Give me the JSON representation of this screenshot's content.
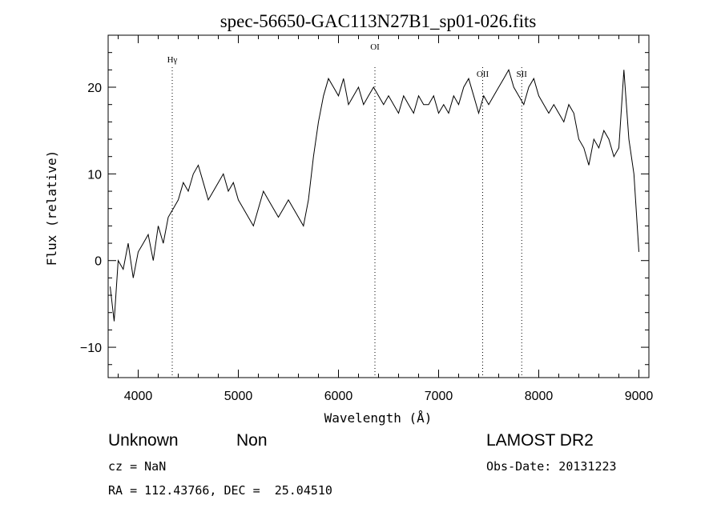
{
  "chart_data": {
    "type": "line",
    "title": "spec-56650-GAC113N27B1_sp01-026.fits",
    "xlabel": "Wavelength (Å)",
    "ylabel": "Flux (relative)",
    "xlim": [
      3700,
      9100
    ],
    "ylim": [
      -13.5,
      26
    ],
    "x_ticks": [
      "4000",
      "5000",
      "6000",
      "7000",
      "8000",
      "9000"
    ],
    "x_tick_values": [
      4000,
      5000,
      6000,
      7000,
      8000,
      9000
    ],
    "y_ticks": [
      "−10",
      "0",
      "10",
      "20"
    ],
    "y_tick_values": [
      -10,
      0,
      10,
      20
    ],
    "grid": false,
    "line_color": "#000000",
    "series": [
      {
        "x": [
          3720,
          3760,
          3800,
          3850,
          3900,
          3950,
          4000,
          4050,
          4100,
          4150,
          4200,
          4250,
          4300,
          4350,
          4400,
          4450,
          4500,
          4550,
          4600,
          4650,
          4700,
          4750,
          4800,
          4850,
          4900,
          4950,
          5000,
          5050,
          5100,
          5150,
          5200,
          5250,
          5300,
          5350,
          5400,
          5450,
          5500,
          5550,
          5600,
          5650,
          5700,
          5750,
          5800,
          5850,
          5900,
          5950,
          6000,
          6050,
          6100,
          6150,
          6200,
          6250,
          6300,
          6350,
          6400,
          6450,
          6500,
          6550,
          6600,
          6650,
          6700,
          6750,
          6800,
          6850,
          6900,
          6950,
          7000,
          7050,
          7100,
          7150,
          7200,
          7250,
          7300,
          7350,
          7400,
          7450,
          7500,
          7550,
          7600,
          7650,
          7700,
          7750,
          7800,
          7850,
          7900,
          7950,
          8000,
          8050,
          8100,
          8150,
          8200,
          8250,
          8300,
          8350,
          8400,
          8450,
          8500,
          8550,
          8600,
          8650,
          8700,
          8750,
          8800,
          8850,
          8900,
          8950,
          9000
        ],
        "y": [
          -3,
          -7,
          0,
          -1,
          2,
          -2,
          1,
          2,
          3,
          0,
          4,
          2,
          5,
          6,
          7,
          9,
          8,
          10,
          11,
          9,
          7,
          8,
          9,
          10,
          8,
          9,
          7,
          6,
          5,
          4,
          6,
          8,
          7,
          6,
          5,
          6,
          7,
          6,
          5,
          4,
          7,
          12,
          16,
          19,
          21,
          20,
          19,
          21,
          18,
          19,
          20,
          18,
          19,
          20,
          19,
          18,
          19,
          18,
          17,
          19,
          18,
          17,
          19,
          18,
          18,
          19,
          17,
          18,
          17,
          19,
          18,
          20,
          21,
          19,
          17,
          19,
          18,
          19,
          20,
          21,
          22,
          20,
          19,
          18,
          20,
          21,
          19,
          18,
          17,
          18,
          17,
          16,
          18,
          17,
          14,
          13,
          11,
          14,
          13,
          15,
          14,
          12,
          13,
          22,
          14,
          10,
          1
        ]
      }
    ],
    "line_markers": [
      {
        "label": "Hγ",
        "x": 4340
      },
      {
        "label": "OI",
        "x": 6364
      },
      {
        "label": "OII",
        "x": 7440
      },
      {
        "label": "SII",
        "x": 7830
      }
    ]
  },
  "info": {
    "classification": "Unknown",
    "subclass": "Non",
    "survey": "LAMOST DR2",
    "cz": "cz = NaN",
    "obs_date": "Obs-Date: 20131223",
    "coords": "RA = 112.43766, DEC =  25.04510"
  }
}
